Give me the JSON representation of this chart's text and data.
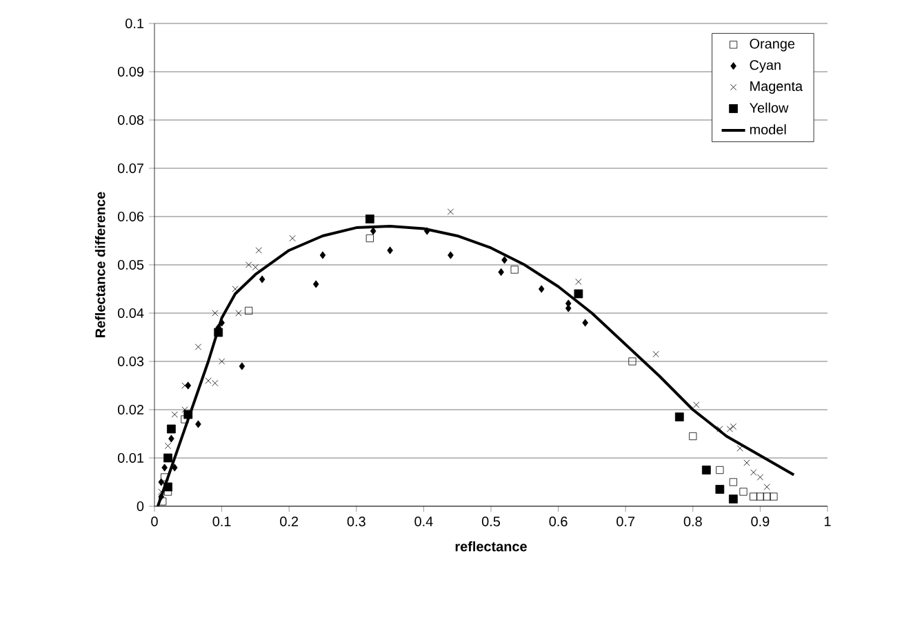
{
  "chart_data": {
    "type": "scatter",
    "xlabel": "reflectance",
    "ylabel": "Reflectance difference",
    "xlim": [
      0,
      1
    ],
    "xticks": [
      0,
      0.1,
      0.2,
      0.3,
      0.4,
      0.5,
      0.6,
      0.7,
      0.8,
      0.9,
      1
    ],
    "ylim": [
      0,
      0.1
    ],
    "yticks": [
      0,
      0.01,
      0.02,
      0.03,
      0.04,
      0.05,
      0.06,
      0.07,
      0.08,
      0.09,
      0.1
    ],
    "grid": "y",
    "legend": "top right",
    "series": [
      {
        "name": "Orange",
        "color": "#000000",
        "marker": "square",
        "x": [
          0.012,
          0.015,
          0.02,
          0.045,
          0.14,
          0.32,
          0.535,
          0.71,
          0.8,
          0.84,
          0.86,
          0.875,
          0.89,
          0.9,
          0.91,
          0.92
        ],
        "values": [
          0.001,
          0.006,
          0.003,
          0.018,
          0.0405,
          0.0555,
          0.049,
          0.03,
          0.0145,
          0.0075,
          0.005,
          0.003,
          0.002,
          0.002,
          0.002,
          0.002
        ]
      },
      {
        "name": "Cyan",
        "color": "#000000",
        "marker": "diamond",
        "x": [
          0.01,
          0.01,
          0.015,
          0.025,
          0.03,
          0.05,
          0.065,
          0.095,
          0.1,
          0.13,
          0.16,
          0.24,
          0.25,
          0.325,
          0.35,
          0.405,
          0.44,
          0.515,
          0.52,
          0.575,
          0.615,
          0.615,
          0.64
        ],
        "values": [
          0.002,
          0.005,
          0.008,
          0.014,
          0.008,
          0.025,
          0.017,
          0.037,
          0.038,
          0.029,
          0.047,
          0.046,
          0.052,
          0.057,
          0.053,
          0.057,
          0.052,
          0.0485,
          0.051,
          0.045,
          0.042,
          0.041,
          0.038
        ]
      },
      {
        "name": "Magenta",
        "color": "#000000",
        "marker": "cross",
        "x": [
          0.01,
          0.02,
          0.03,
          0.045,
          0.045,
          0.065,
          0.08,
          0.09,
          0.09,
          0.1,
          0.125,
          0.12,
          0.14,
          0.15,
          0.155,
          0.205,
          0.44,
          0.63,
          0.745,
          0.805,
          0.84,
          0.855,
          0.86,
          0.87,
          0.88,
          0.89,
          0.9,
          0.91
        ],
        "values": [
          0.003,
          0.0125,
          0.019,
          0.02,
          0.025,
          0.033,
          0.026,
          0.0255,
          0.04,
          0.03,
          0.04,
          0.045,
          0.05,
          0.0495,
          0.053,
          0.0555,
          0.061,
          0.0465,
          0.0315,
          0.021,
          0.016,
          0.016,
          0.0165,
          0.012,
          0.009,
          0.007,
          0.006,
          0.004
        ]
      },
      {
        "name": "Yellow",
        "color": "#000000",
        "x": [
          0.02,
          0.02,
          0.025,
          0.05,
          0.095,
          0.32,
          0.63,
          0.78,
          0.82,
          0.84,
          0.86
        ],
        "values": [
          0.004,
          0.01,
          0.016,
          0.019,
          0.036,
          0.0595,
          0.044,
          0.0185,
          0.0075,
          0.0035,
          0.0015
        ]
      },
      {
        "name": "model",
        "type": "line",
        "color": "#000000",
        "marker": "none",
        "line_style": "solid",
        "x": [
          0.005,
          0.02,
          0.05,
          0.08,
          0.1,
          0.12,
          0.15,
          0.2,
          0.25,
          0.3,
          0.35,
          0.4,
          0.45,
          0.5,
          0.55,
          0.6,
          0.65,
          0.7,
          0.75,
          0.8,
          0.85,
          0.9,
          0.95
        ],
        "values": [
          0,
          0.006,
          0.018,
          0.03,
          0.039,
          0.044,
          0.048,
          0.053,
          0.056,
          0.0577,
          0.058,
          0.0575,
          0.056,
          0.0535,
          0.05,
          0.0455,
          0.04,
          0.0335,
          0.027,
          0.02,
          0.0145,
          0.0105,
          0.0065
        ]
      }
    ]
  }
}
